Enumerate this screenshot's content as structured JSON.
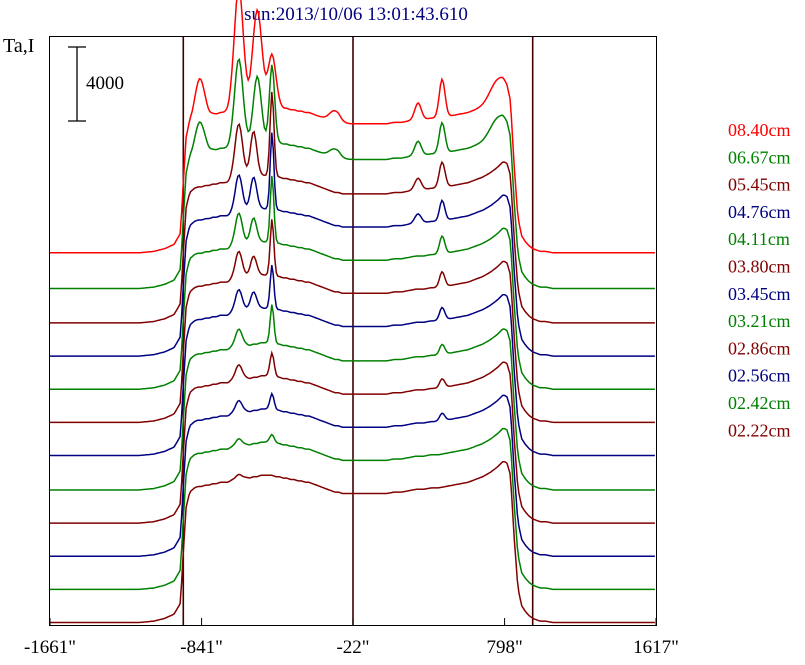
{
  "chart_data": {
    "type": "line",
    "title": "sun:2013/10/06 13:01:43.610",
    "ylabel": "Ta,I",
    "scale_bar_label": "4000",
    "scale_bar_value": 4000,
    "x_tick_labels": [
      "-1661\"",
      "-841\"",
      "-22\"",
      "798\"",
      "1617\""
    ],
    "x_ticks": [
      -1661,
      -841,
      -22,
      798,
      1617
    ],
    "xlim": [
      -1661,
      1617
    ],
    "vertical_markers": [
      -940,
      -22,
      950
    ],
    "curve_x": [
      -1661,
      -1580,
      -1500,
      -1420,
      -1340,
      -1260,
      -1180,
      -1100,
      -1040,
      -990,
      -955,
      -940,
      -925,
      -905,
      -880,
      -860,
      -840,
      -820,
      -800,
      -780,
      -760,
      -740,
      -720,
      -700,
      -680,
      -660,
      -640,
      -620,
      -600,
      -580,
      -560,
      -540,
      -520,
      -500,
      -480,
      -460,
      -440,
      -420,
      -400,
      -380,
      -360,
      -340,
      -320,
      -300,
      -280,
      -260,
      -240,
      -220,
      -200,
      -180,
      -160,
      -140,
      -120,
      -100,
      -80,
      -60,
      -40,
      -22,
      0,
      40,
      80,
      120,
      160,
      200,
      240,
      280,
      320,
      360,
      400,
      440,
      480,
      520,
      560,
      600,
      640,
      680,
      720,
      760,
      790,
      810,
      830,
      850,
      870,
      890,
      910,
      930,
      950,
      970,
      990,
      1020,
      1060,
      1120,
      1200,
      1300,
      1400,
      1500,
      1617
    ],
    "curve_shape": [
      0,
      0,
      0,
      0,
      0,
      0,
      0,
      0.01,
      0.03,
      0.06,
      0.14,
      0.5,
      0.82,
      0.93,
      0.96,
      0.97,
      0.97,
      0.98,
      0.98,
      0.99,
      0.99,
      1,
      1,
      1,
      1.01,
      1.01,
      1.02,
      1.02,
      1.03,
      1.03,
      1.04,
      1.04,
      1.05,
      1.05,
      1.05,
      1.05,
      1.04,
      1.04,
      1.03,
      1.03,
      1.02,
      1.02,
      1.01,
      1.01,
      1,
      1,
      0.99,
      0.98,
      0.97,
      0.96,
      0.95,
      0.94,
      0.93,
      0.93,
      0.92,
      0.92,
      0.92,
      0.92,
      0.92,
      0.92,
      0.92,
      0.92,
      0.92,
      0.93,
      0.93,
      0.94,
      0.95,
      0.95,
      0.96,
      0.96,
      0.97,
      0.98,
      0.99,
      1,
      1.02,
      1.04,
      1.07,
      1.11,
      1.15,
      1.14,
      1.05,
      0.6,
      0.25,
      0.12,
      0.08,
      0.05,
      0.03,
      0.02,
      0.01,
      0.01,
      0,
      0,
      0,
      0,
      0,
      0,
      0
    ],
    "series": [
      {
        "name": "08.40cm",
        "color": "#ff0000",
        "offset": 14400,
        "amplitude": 5500,
        "peaks": [
          [
            -850,
            1500,
            35
          ],
          [
            -640,
            4800,
            35
          ],
          [
            -540,
            3800,
            35
          ],
          [
            -460,
            2000,
            30
          ],
          [
            -120,
            450,
            40
          ],
          [
            330,
            650,
            25
          ],
          [
            460,
            1500,
            22
          ],
          [
            760,
            700,
            60
          ]
        ]
      },
      {
        "name": "06.67cm",
        "color": "#008000",
        "offset": 13000,
        "amplitude": 5500,
        "peaks": [
          [
            -850,
            1200,
            35
          ],
          [
            -640,
            3400,
            33
          ],
          [
            -540,
            2600,
            30
          ],
          [
            -460,
            3000,
            20
          ],
          [
            -120,
            350,
            40
          ],
          [
            330,
            550,
            25
          ],
          [
            460,
            1200,
            22
          ],
          [
            760,
            600,
            60
          ]
        ]
      },
      {
        "name": "05.45cm",
        "color": "#800000",
        "offset": 11650,
        "amplitude": 5500,
        "peaks": [
          [
            -640,
            2200,
            30
          ],
          [
            -560,
            1800,
            25
          ],
          [
            -460,
            3300,
            15
          ],
          [
            330,
            450,
            25
          ],
          [
            460,
            1000,
            22
          ]
        ]
      },
      {
        "name": "04.76cm",
        "color": "#000080",
        "offset": 10350,
        "amplitude": 5500,
        "peaks": [
          [
            -640,
            1500,
            28
          ],
          [
            -560,
            1300,
            25
          ],
          [
            -460,
            3000,
            14
          ],
          [
            330,
            350,
            25
          ],
          [
            460,
            800,
            20
          ]
        ]
      },
      {
        "name": "04.11cm",
        "color": "#008000",
        "offset": 9050,
        "amplitude": 5500,
        "peaks": [
          [
            -640,
            1300,
            28
          ],
          [
            -560,
            1000,
            25
          ],
          [
            -460,
            2600,
            14
          ],
          [
            460,
            700,
            20
          ]
        ]
      },
      {
        "name": "03.80cm",
        "color": "#800000",
        "offset": 7750,
        "amplitude": 5500,
        "peaks": [
          [
            -640,
            1100,
            28
          ],
          [
            -560,
            800,
            25
          ],
          [
            -460,
            2200,
            14
          ],
          [
            460,
            600,
            20
          ]
        ]
      },
      {
        "name": "03.45cm",
        "color": "#000080",
        "offset": 6450,
        "amplitude": 5500,
        "peaks": [
          [
            -640,
            900,
            28
          ],
          [
            -560,
            700,
            25
          ],
          [
            -460,
            1700,
            14
          ],
          [
            460,
            500,
            20
          ]
        ]
      },
      {
        "name": "03.21cm",
        "color": "#008000",
        "offset": 5100,
        "amplitude": 5500,
        "peaks": [
          [
            -640,
            700,
            28
          ],
          [
            -460,
            1500,
            14
          ],
          [
            460,
            400,
            20
          ]
        ]
      },
      {
        "name": "02.86cm",
        "color": "#800000",
        "offset": 3800,
        "amplitude": 5500,
        "peaks": [
          [
            -640,
            600,
            28
          ],
          [
            -460,
            900,
            16
          ],
          [
            460,
            350,
            20
          ]
        ]
      },
      {
        "name": "02.56cm",
        "color": "#000080",
        "offset": 2500,
        "amplitude": 5500,
        "peaks": [
          [
            -640,
            500,
            28
          ],
          [
            -460,
            600,
            16
          ],
          [
            460,
            300,
            20
          ]
        ]
      },
      {
        "name": "02.42cm",
        "color": "#008000",
        "offset": 1200,
        "amplitude": 5500,
        "peaks": [
          [
            -640,
            300,
            28
          ],
          [
            -460,
            300,
            18
          ]
        ]
      },
      {
        "name": "02.22cm",
        "color": "#800000",
        "offset": -100,
        "amplitude": 5500,
        "peaks": [
          [
            -640,
            200,
            30
          ]
        ]
      }
    ]
  }
}
